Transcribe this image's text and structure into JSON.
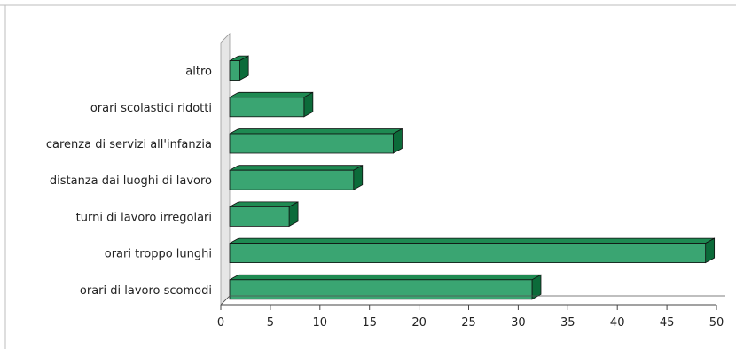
{
  "chart_data": {
    "type": "bar",
    "orientation": "horizontal",
    "style": "3d",
    "categories": [
      "altro",
      "orari scolastici ridotti",
      "carenza di servizi all'infanzia",
      "distanza dai luoghi di lavoro",
      "turni di lavoro irregolari",
      "orari troppo lunghi",
      "orari di lavoro scomodi"
    ],
    "values": [
      1,
      7.5,
      16.5,
      12.5,
      6,
      48,
      30.5
    ],
    "xticks": [
      "0",
      "5",
      "10",
      "15",
      "20",
      "25",
      "30",
      "35",
      "40",
      "45",
      "50"
    ],
    "xlim": [
      0,
      50
    ],
    "grid": false,
    "colors": {
      "bar_front": "#3aa572",
      "bar_top": "#1e8a52",
      "bar_side": "#0c6b3a",
      "outline": "#111111",
      "back_wall": "#e6e6e6"
    }
  }
}
